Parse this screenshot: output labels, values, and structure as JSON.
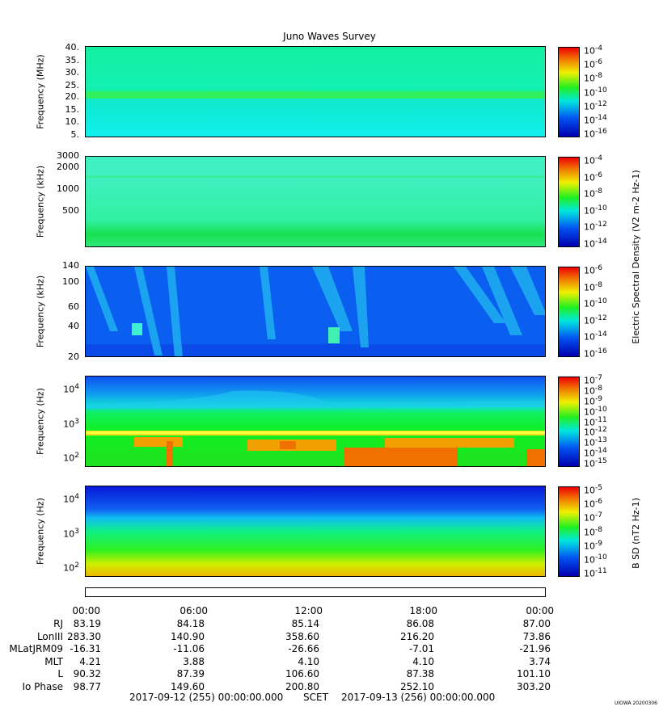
{
  "title": "Juno Waves Survey",
  "chart_data": [
    {
      "type": "heatmap",
      "panel": "hfr-high",
      "ylabel": "Frequency (MHz)",
      "yticks": [
        "40.",
        "35.",
        "30.",
        "25.",
        "20.",
        "15.",
        "10.",
        "5."
      ],
      "yrange": [
        3,
        41
      ],
      "features": [
        "band near 21 MHz"
      ],
      "colorbar_exponents": [
        "-4",
        "-6",
        "-8",
        "-10",
        "-12",
        "-14",
        "-16"
      ]
    },
    {
      "type": "heatmap",
      "panel": "hfr-low",
      "ylabel": "Frequency (kHz)",
      "yticks": [
        "3000",
        "2000",
        "1000",
        "500"
      ],
      "yscale": "log",
      "colorbar_exponents": [
        "-4",
        "-6",
        "-8",
        "-10",
        "-12",
        "-14"
      ]
    },
    {
      "type": "heatmap",
      "panel": "lfr-high",
      "ylabel": "Frequency (kHz)",
      "yticks": [
        "140",
        "100",
        "60",
        "40",
        "20"
      ],
      "yscale": "log",
      "colorbar_exponents": [
        "-6",
        "-8",
        "-10",
        "-12",
        "-14",
        "-16"
      ]
    },
    {
      "type": "heatmap",
      "panel": "lfr-low",
      "ylabel": "Frequency (Hz)",
      "yticks": [
        {
          "b": "10",
          "e": "4"
        },
        {
          "b": "10",
          "e": "3"
        },
        {
          "b": "10",
          "e": "2"
        }
      ],
      "yscale": "log",
      "colorbar_exponents": [
        "-7",
        "-8",
        "-9",
        "-10",
        "-11",
        "-12",
        "-13",
        "-14",
        "-15"
      ]
    },
    {
      "type": "heatmap",
      "panel": "magnetic",
      "ylabel": "Frequency (Hz)",
      "yticks": [
        {
          "b": "10",
          "e": "4"
        },
        {
          "b": "10",
          "e": "3"
        },
        {
          "b": "10",
          "e": "2"
        }
      ],
      "yscale": "log",
      "colorbar_exponents": [
        "-5",
        "-6",
        "-7",
        "-8",
        "-9",
        "-10",
        "-11"
      ]
    }
  ],
  "colorbar_labels": {
    "electric": "Electric Spectral Density (V2 m-2 Hz-1)",
    "magnetic": "B SD (nT2 Hz-1)"
  },
  "xticks": [
    "00:00",
    "06:00",
    "12:00",
    "18:00",
    "00:00"
  ],
  "ephemeris": [
    {
      "label": "RJ",
      "values": [
        "83.19",
        "84.18",
        "85.14",
        "86.08",
        "87.00"
      ]
    },
    {
      "label": "LonIII",
      "values": [
        "283.30",
        "140.90",
        "358.60",
        "216.20",
        "73.86"
      ]
    },
    {
      "label": "MLatJRM09",
      "values": [
        "-16.31",
        "-11.06",
        "-26.66",
        "-7.01",
        "-21.96"
      ]
    },
    {
      "label": "MLT",
      "values": [
        "4.21",
        "3.88",
        "4.10",
        "4.10",
        "3.74"
      ]
    },
    {
      "label": "L",
      "values": [
        "90.32",
        "87.39",
        "106.60",
        "87.38",
        "101.10"
      ]
    },
    {
      "label": "Io Phase",
      "values": [
        "98.77",
        "149.60",
        "200.80",
        "252.10",
        "303.20"
      ]
    }
  ],
  "footer": {
    "start": "2017-09-12 (255) 00:00:00.000",
    "mid": "SCET",
    "end": "2017-09-13 (256) 00:00:00.000"
  },
  "stamp": "UIOWA 20200306",
  "colors": {
    "low": "#0000c8",
    "mid": "#00e8e0",
    "high": "#ff0000"
  }
}
